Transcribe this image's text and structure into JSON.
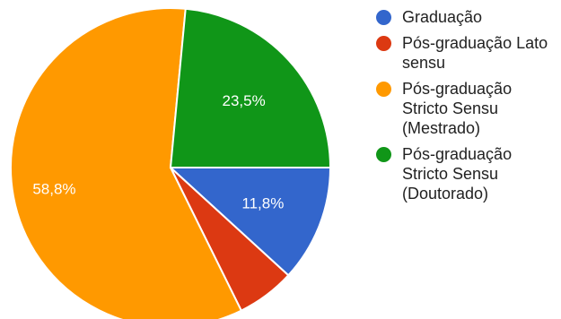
{
  "chart_data": {
    "type": "pie",
    "title": "",
    "slices": [
      {
        "label": "Graduação",
        "value": 11.8,
        "color": "#3366CC",
        "display_label": "11,8%"
      },
      {
        "label": "Pós-graduação Lato sensu",
        "value": 5.9,
        "color": "#DC3912",
        "display_label": ""
      },
      {
        "label": "Pós-graduação Stricto Sensu (Mestrado)",
        "value": 58.8,
        "color": "#FF9900",
        "display_label": "58,8%"
      },
      {
        "label": "Pós-graduação Stricto Sensu (Doutorado)",
        "value": 23.5,
        "color": "#109618",
        "display_label": "23,5%"
      }
    ],
    "start": "3 o'clock, clockwise",
    "legend_position": "right"
  }
}
